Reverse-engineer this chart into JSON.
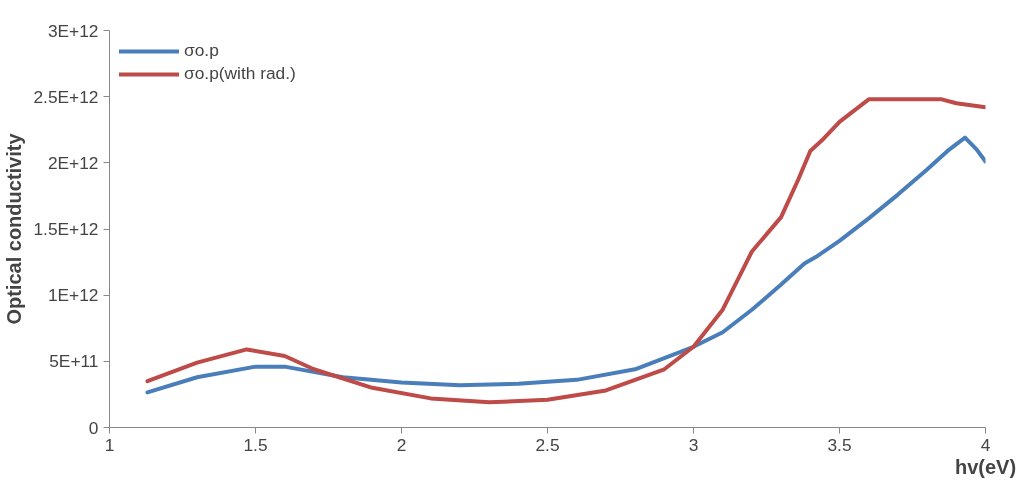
{
  "chart_data": {
    "type": "line",
    "xlabel": "hv(eV)",
    "ylabel": "Optical conductivity",
    "xlim": [
      1,
      4
    ],
    "xticks": [
      1,
      1.5,
      2,
      2.5,
      3,
      3.5,
      4
    ],
    "ylim": [
      0,
      3000000000000.0
    ],
    "yticks": [
      {
        "value": 0,
        "label": "0"
      },
      {
        "value": 500000000000.0,
        "label": "5E+11"
      },
      {
        "value": 1000000000000.0,
        "label": "1E+12"
      },
      {
        "value": 1500000000000.0,
        "label": "1.5E+12"
      },
      {
        "value": 2000000000000.0,
        "label": "2E+12"
      },
      {
        "value": 2500000000000.0,
        "label": "2.5E+12"
      },
      {
        "value": 3000000000000.0,
        "label": "3E+12"
      }
    ],
    "grid": false,
    "legend": "top left",
    "line_style": "solid",
    "marker": "none",
    "series": [
      {
        "name": "σo.p",
        "color": "#4a7ebb",
        "x": [
          1.13,
          1.3,
          1.5,
          1.6,
          1.8,
          2.0,
          2.2,
          2.4,
          2.6,
          2.8,
          3.0,
          3.1,
          3.2,
          3.3,
          3.38,
          3.42,
          3.5,
          3.6,
          3.7,
          3.8,
          3.87,
          3.93,
          3.97,
          4.0
        ],
        "values": [
          265000000000.0,
          380000000000.0,
          460000000000.0,
          460000000000.0,
          380000000000.0,
          340000000000.0,
          320000000000.0,
          330000000000.0,
          360000000000.0,
          440000000000.0,
          610000000000.0,
          720000000000.0,
          890000000000.0,
          1080000000000.0,
          1240000000000.0,
          1290000000000.0,
          1410000000000.0,
          1580000000000.0,
          1760000000000.0,
          1950000000000.0,
          2090000000000.0,
          2190000000000.0,
          2100000000000.0,
          2010000000000.0
        ]
      },
      {
        "name": "σo.p(with rad.)",
        "color": "#be4b48",
        "x": [
          1.13,
          1.3,
          1.47,
          1.6,
          1.7,
          1.9,
          2.1,
          2.3,
          2.5,
          2.7,
          2.9,
          3.0,
          3.1,
          3.2,
          3.3,
          3.36,
          3.4,
          3.44,
          3.5,
          3.6,
          3.7,
          3.85,
          3.9,
          4.0
        ],
        "values": [
          350000000000.0,
          490000000000.0,
          590000000000.0,
          540000000000.0,
          440000000000.0,
          300000000000.0,
          220000000000.0,
          190000000000.0,
          210000000000.0,
          280000000000.0,
          440000000000.0,
          610000000000.0,
          890000000000.0,
          1330000000000.0,
          1590000000000.0,
          1880000000000.0,
          2090000000000.0,
          2170000000000.0,
          2310000000000.0,
          2480000000000.0,
          2480000000000.0,
          2480000000000.0,
          2450000000000.0,
          2420000000000.0
        ]
      }
    ]
  }
}
